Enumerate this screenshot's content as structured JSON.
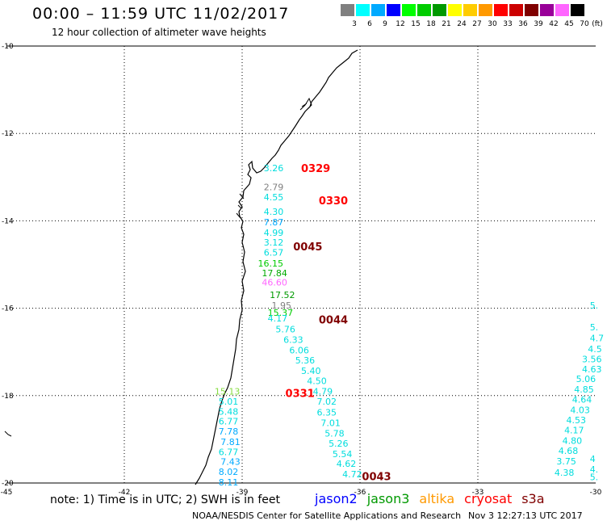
{
  "header": {
    "title": "00:00 – 11:59 UTC 11/02/2017",
    "subtitle": "12 hour collection of altimeter wave heights"
  },
  "color_scale": {
    "unit": "(ft)",
    "colors": [
      "#808080",
      "#00ffff",
      "#00aaff",
      "#0000ff",
      "#00ff00",
      "#00cc00",
      "#009900",
      "#ffff00",
      "#ffcc00",
      "#ff9900",
      "#ff0000",
      "#cc0000",
      "#800000",
      "#990099",
      "#ff66ff",
      "#000000"
    ],
    "labels": [
      "3",
      "6",
      "9",
      "12",
      "15",
      "18",
      "21",
      "24",
      "27",
      "30",
      "33",
      "36",
      "39",
      "42",
      "45",
      "70"
    ]
  },
  "axes": {
    "x_labels": [
      "-45",
      "-42",
      "-39",
      "-36",
      "-33",
      "-30"
    ],
    "y_labels": [
      "-10",
      "-12",
      "-14",
      "-16",
      "-18",
      "-20"
    ]
  },
  "points": [
    {
      "text": "3.26",
      "color": "#00dddd",
      "lon": -38.45,
      "lat": -12.79
    },
    {
      "text": "2.79",
      "color": "#808080",
      "lon": -38.45,
      "lat": -13.23
    },
    {
      "text": "4.55",
      "color": "#00dddd",
      "lon": -38.45,
      "lat": -13.46
    },
    {
      "text": "4.30",
      "color": "#00dddd",
      "lon": -38.45,
      "lat": -13.79
    },
    {
      "text": "7.87",
      "color": "#00aaff",
      "lon": -38.45,
      "lat": -14.03
    },
    {
      "text": "4.99",
      "color": "#00dddd",
      "lon": -38.45,
      "lat": -14.27
    },
    {
      "text": "3.12",
      "color": "#00dddd",
      "lon": -38.45,
      "lat": -14.49
    },
    {
      "text": "6.57",
      "color": "#00dddd",
      "lon": -38.45,
      "lat": -14.72
    },
    {
      "text": "16.15",
      "color": "#00cc00",
      "lon": -38.6,
      "lat": -14.97
    },
    {
      "text": "17.84",
      "color": "#00aa00",
      "lon": -38.5,
      "lat": -15.19
    },
    {
      "text": "46.60",
      "color": "#ff66ff",
      "lon": -38.5,
      "lat": -15.41
    },
    {
      "text": "17.52",
      "color": "#009900",
      "lon": -38.3,
      "lat": -15.69
    },
    {
      "text": "1.95",
      "color": "#808080",
      "lon": -38.25,
      "lat": -15.93
    },
    {
      "text": "15.37",
      "color": "#00cc00",
      "lon": -38.35,
      "lat": -16.1
    },
    {
      "text": "4.17",
      "color": "#00dddd",
      "lon": -38.35,
      "lat": -16.23
    },
    {
      "text": "5.76",
      "color": "#00dddd",
      "lon": -38.15,
      "lat": -16.48
    },
    {
      "text": "6.33",
      "color": "#00dddd",
      "lon": -37.95,
      "lat": -16.72
    },
    {
      "text": "6.06",
      "color": "#00dddd",
      "lon": -37.8,
      "lat": -16.96
    },
    {
      "text": "5.36",
      "color": "#00dddd",
      "lon": -37.65,
      "lat": -17.19
    },
    {
      "text": "5.40",
      "color": "#00dddd",
      "lon": -37.5,
      "lat": -17.43
    },
    {
      "text": "4.50",
      "color": "#00dddd",
      "lon": -37.35,
      "lat": -17.66
    },
    {
      "text": "4.79",
      "color": "#00dddd",
      "lon": -37.2,
      "lat": -17.9
    },
    {
      "text": "15.13",
      "color": "#88dd44",
      "lon": -39.7,
      "lat": -17.9
    },
    {
      "text": "5.01",
      "color": "#00dddd",
      "lon": -39.6,
      "lat": -18.13
    },
    {
      "text": "7.02",
      "color": "#00dddd",
      "lon": -37.1,
      "lat": -18.13
    },
    {
      "text": "5.48",
      "color": "#00dddd",
      "lon": -39.6,
      "lat": -18.36
    },
    {
      "text": "6.35",
      "color": "#00dddd",
      "lon": -37.1,
      "lat": -18.38
    },
    {
      "text": "6.77",
      "color": "#00dddd",
      "lon": -39.6,
      "lat": -18.59
    },
    {
      "text": "7.01",
      "color": "#00dddd",
      "lon": -37.0,
      "lat": -18.62
    },
    {
      "text": "7.78",
      "color": "#00aaff",
      "lon": -39.6,
      "lat": -18.82
    },
    {
      "text": "5.78",
      "color": "#00dddd",
      "lon": -36.9,
      "lat": -18.86
    },
    {
      "text": "7.81",
      "color": "#00aaff",
      "lon": -39.55,
      "lat": -19.06
    },
    {
      "text": "5.26",
      "color": "#00dddd",
      "lon": -36.8,
      "lat": -19.09
    },
    {
      "text": "6.77",
      "color": "#00dddd",
      "lon": -39.6,
      "lat": -19.29
    },
    {
      "text": "5.54",
      "color": "#00dddd",
      "lon": -36.7,
      "lat": -19.33
    },
    {
      "text": "7.43",
      "color": "#00aaff",
      "lon": -39.55,
      "lat": -19.51
    },
    {
      "text": "4.62",
      "color": "#00dddd",
      "lon": -36.6,
      "lat": -19.56
    },
    {
      "text": "8.02",
      "color": "#00aaff",
      "lon": -39.6,
      "lat": -19.74
    },
    {
      "text": "4.72",
      "color": "#00dddd",
      "lon": -36.45,
      "lat": -19.8
    },
    {
      "text": "8.11",
      "color": "#00aaff",
      "lon": -39.6,
      "lat": -19.98
    },
    {
      "text": "5.",
      "color": "#00dddd",
      "lon": -30.15,
      "lat": -15.93
    },
    {
      "text": "5.",
      "color": "#00dddd",
      "lon": -30.15,
      "lat": -16.43
    },
    {
      "text": "4.7",
      "color": "#00dddd",
      "lon": -30.15,
      "lat": -16.68
    },
    {
      "text": "4.5",
      "color": "#00dddd",
      "lon": -30.2,
      "lat": -16.93
    },
    {
      "text": "3.56",
      "color": "#00dddd",
      "lon": -30.35,
      "lat": -17.16
    },
    {
      "text": "4.63",
      "color": "#00dddd",
      "lon": -30.35,
      "lat": -17.39
    },
    {
      "text": "5.06",
      "color": "#00dddd",
      "lon": -30.5,
      "lat": -17.62
    },
    {
      "text": "4.85",
      "color": "#00dddd",
      "lon": -30.55,
      "lat": -17.86
    },
    {
      "text": "4.64",
      "color": "#00dddd",
      "lon": -30.6,
      "lat": -18.09
    },
    {
      "text": "4.03",
      "color": "#00dddd",
      "lon": -30.65,
      "lat": -18.33
    },
    {
      "text": "4.53",
      "color": "#00dddd",
      "lon": -30.75,
      "lat": -18.56
    },
    {
      "text": "4.17",
      "color": "#00dddd",
      "lon": -30.8,
      "lat": -18.79
    },
    {
      "text": "4.80",
      "color": "#00dddd",
      "lon": -30.85,
      "lat": -19.03
    },
    {
      "text": "4.68",
      "color": "#00dddd",
      "lon": -30.95,
      "lat": -19.26
    },
    {
      "text": "3.75",
      "color": "#00dddd",
      "lon": -31.0,
      "lat": -19.5
    },
    {
      "text": "4.38",
      "color": "#00dddd",
      "lon": -31.05,
      "lat": -19.76
    },
    {
      "text": "4",
      "color": "#00dddd",
      "lon": -30.15,
      "lat": -19.45
    },
    {
      "text": "4.",
      "color": "#00dddd",
      "lon": -30.15,
      "lat": -19.69
    },
    {
      "text": "5.",
      "color": "#00dddd",
      "lon": -30.15,
      "lat": -19.86
    }
  ],
  "pass_labels": [
    {
      "text": "0329",
      "color": "#ff0000",
      "lon": -37.5,
      "lat": -12.79
    },
    {
      "text": "0330",
      "color": "#ff0000",
      "lon": -37.05,
      "lat": -13.53
    },
    {
      "text": "0045",
      "color": "#800000",
      "lon": -37.7,
      "lat": -14.58
    },
    {
      "text": "0044",
      "color": "#800000",
      "lon": -37.05,
      "lat": -16.26
    },
    {
      "text": "0331",
      "color": "#ff0000",
      "lon": -37.9,
      "lat": -17.94
    },
    {
      "text": "0043",
      "color": "#800000",
      "lon": -35.95,
      "lat": -19.84
    }
  ],
  "footer": {
    "note": "note: 1) Time is in UTC; 2) SWH is in feet",
    "satellites": [
      {
        "name": "jason2",
        "color": "#0000ff"
      },
      {
        "name": "jason3",
        "color": "#009900"
      },
      {
        "name": "altika",
        "color": "#ff9900"
      },
      {
        "name": "cryosat",
        "color": "#ff0000"
      },
      {
        "name": "s3a",
        "color": "#800000"
      }
    ],
    "credit": "NOAA/NESDIS Center for Satellite Applications and Research",
    "timestamp": "Nov  3 12:27:13 UTC 2017"
  }
}
